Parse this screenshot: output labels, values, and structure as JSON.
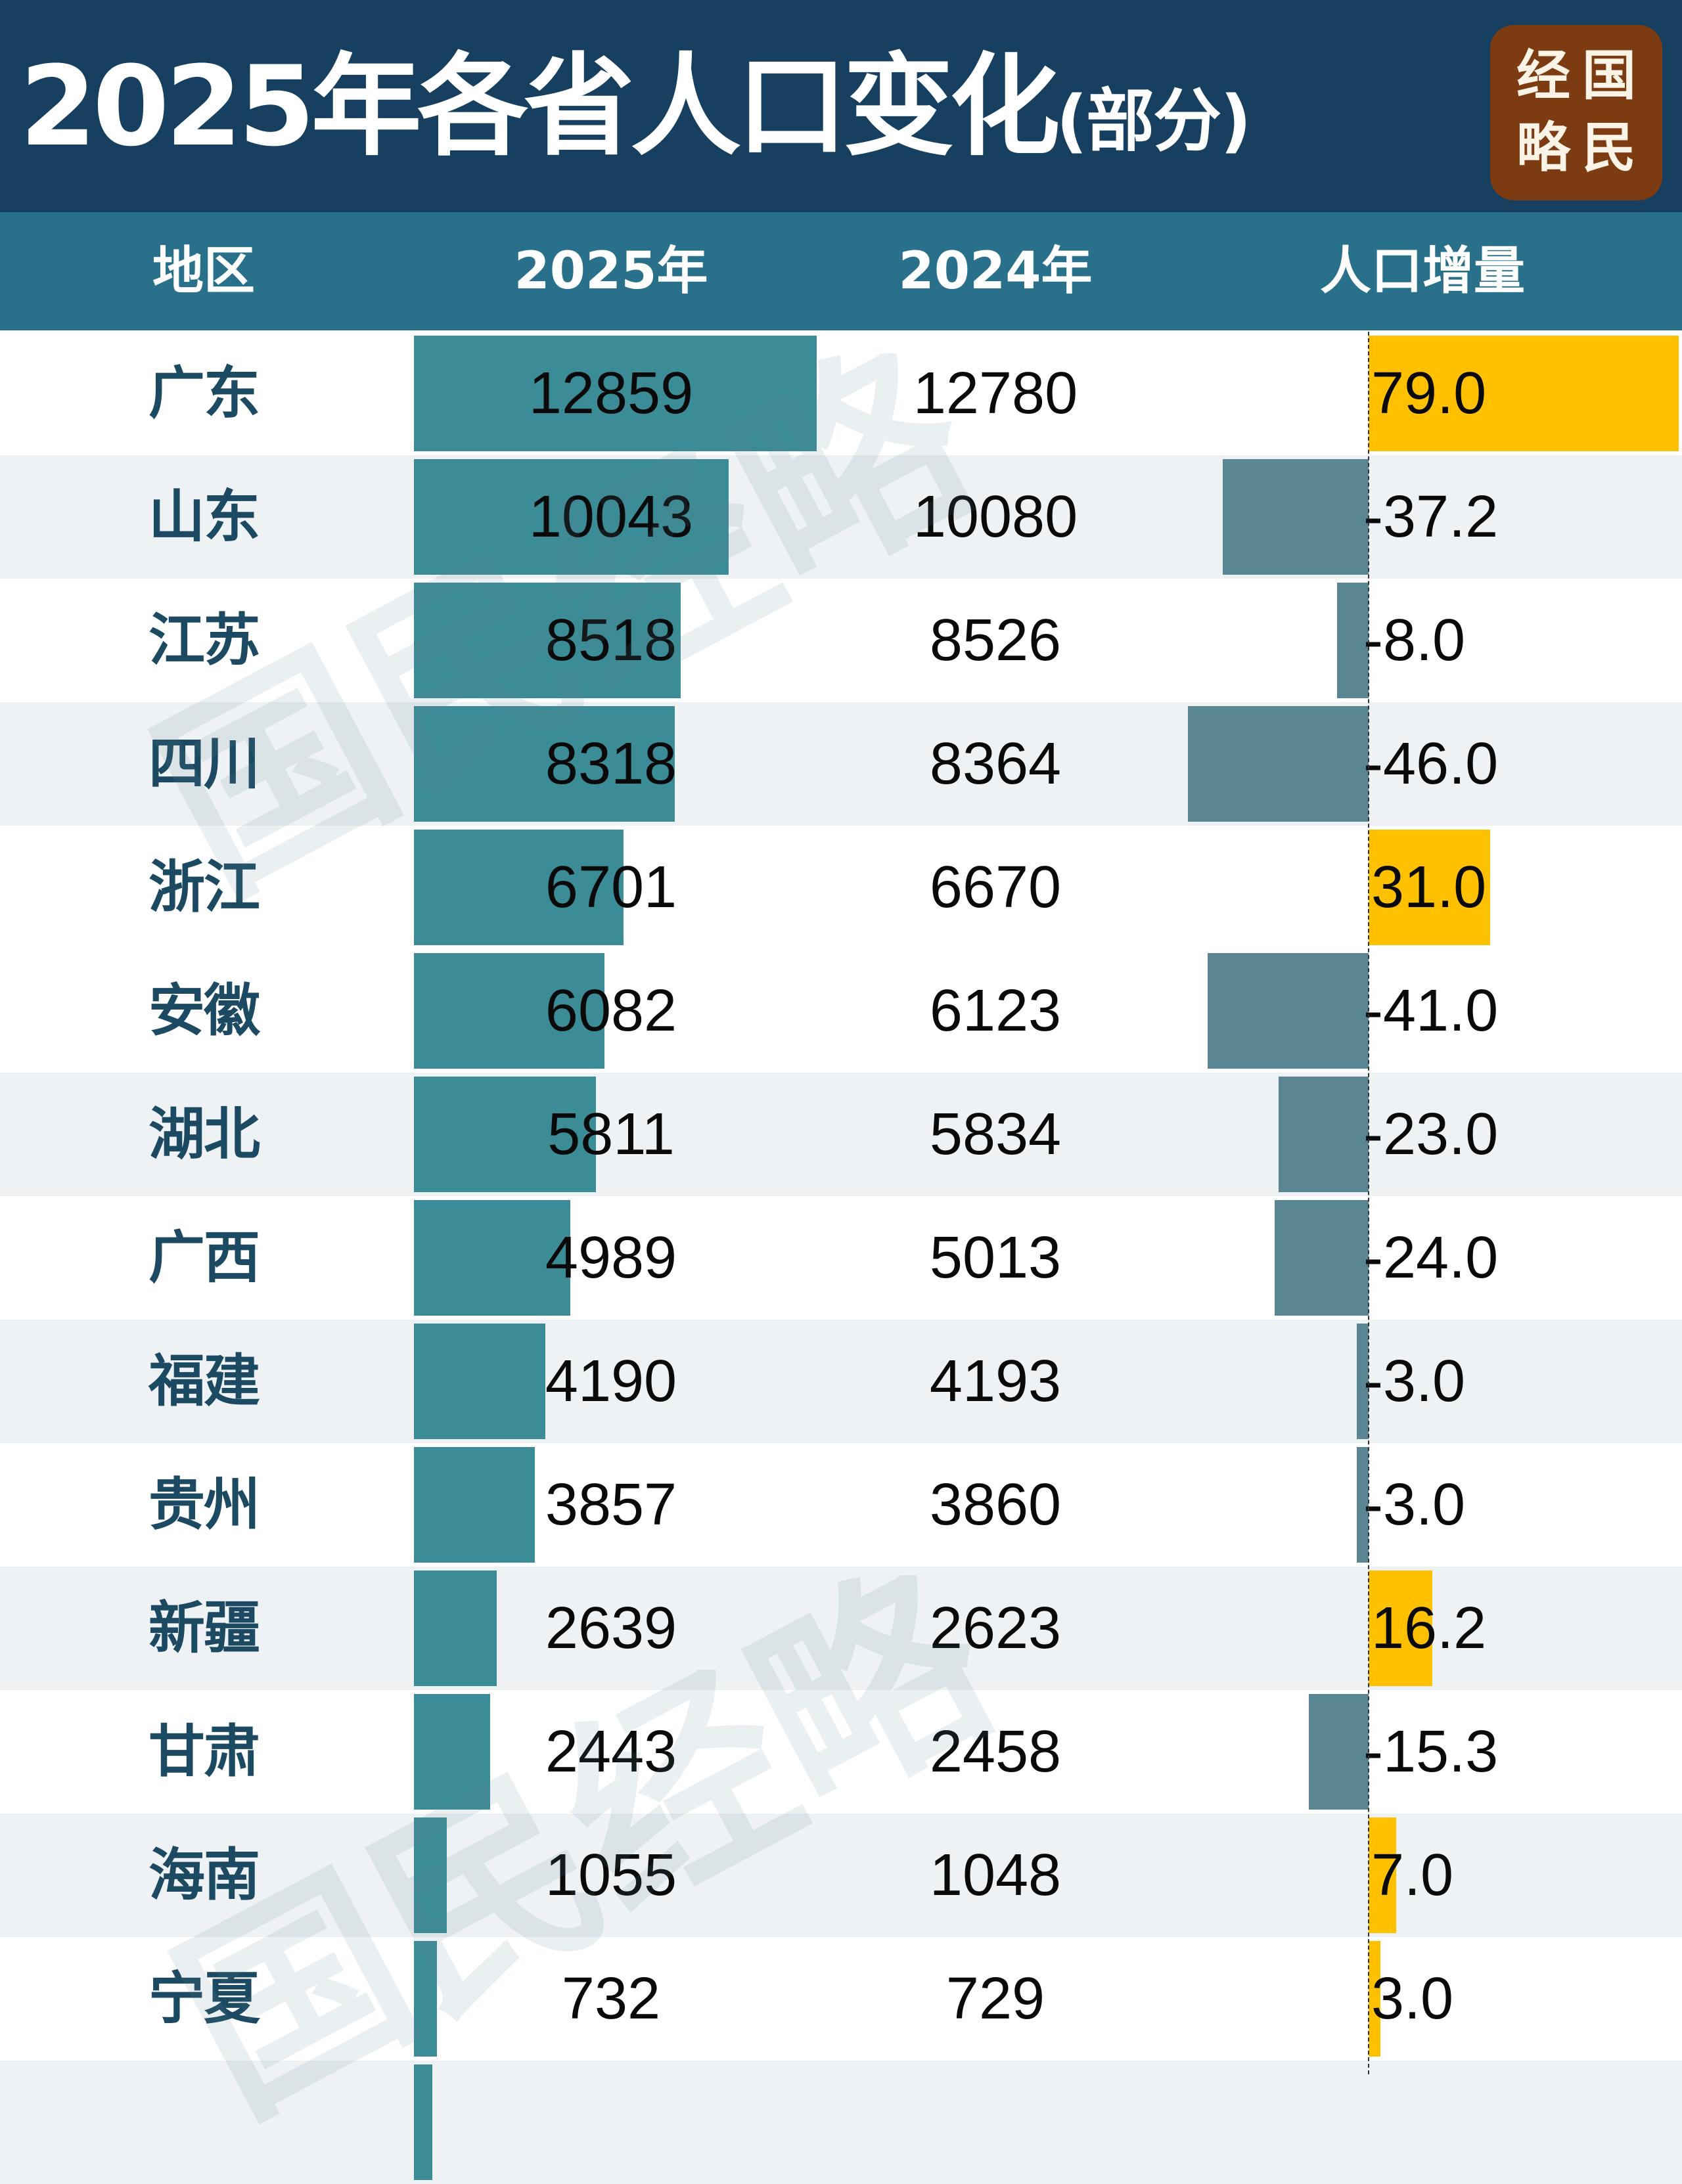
{
  "header": {
    "title_main": "2025年各省人口变化",
    "title_sub": "(部分)",
    "logo": {
      "chars": [
        "经",
        "国",
        "略",
        "民"
      ],
      "text": "国民经略",
      "bg_color": "#7d3b11"
    }
  },
  "table": {
    "columns": [
      "地区",
      "2025年",
      "2024年",
      "人口增量"
    ],
    "rows": [
      {
        "region": "广东",
        "y2025": "12859",
        "y2024": "12780",
        "change": "79.0"
      },
      {
        "region": "山东",
        "y2025": "10043",
        "y2024": "10080",
        "change": "-37.2"
      },
      {
        "region": "江苏",
        "y2025": "8518",
        "y2024": "8526",
        "change": "-8.0"
      },
      {
        "region": "四川",
        "y2025": "8318",
        "y2024": "8364",
        "change": "-46.0"
      },
      {
        "region": "浙江",
        "y2025": "6701",
        "y2024": "6670",
        "change": "31.0"
      },
      {
        "region": "安徽",
        "y2025": "6082",
        "y2024": "6123",
        "change": "-41.0"
      },
      {
        "region": "湖北",
        "y2025": "5811",
        "y2024": "5834",
        "change": "-23.0"
      },
      {
        "region": "广西",
        "y2025": "4989",
        "y2024": "5013",
        "change": "-24.0"
      },
      {
        "region": "福建",
        "y2025": "4190",
        "y2024": "4193",
        "change": "-3.0"
      },
      {
        "region": "贵州",
        "y2025": "3857",
        "y2024": "3860",
        "change": "-3.0"
      },
      {
        "region": "新疆",
        "y2025": "2639",
        "y2024": "2623",
        "change": "16.2"
      },
      {
        "region": "甘肃",
        "y2025": "2443",
        "y2024": "2458",
        "change": "-15.3"
      },
      {
        "region": "海南",
        "y2025": "1055",
        "y2024": "1048",
        "change": "7.0"
      },
      {
        "region": "宁夏",
        "y2025": "732",
        "y2024": "729",
        "change": "3.0"
      }
    ]
  },
  "colors": {
    "title_band": "#163f60",
    "header_band": "#29718b",
    "bar_2025": "#3b8c96",
    "change_negative": "#5a8693",
    "change_positive": "#ffc000",
    "region_text": "#1d4a63",
    "row_alt": "#eef2f4"
  },
  "watermark": "国民经略",
  "chart_data": {
    "type": "table",
    "title": "2025年各省人口变化(部分)",
    "columns": [
      "地区",
      "2025年",
      "2024年",
      "人口增量"
    ],
    "categories": [
      "广东",
      "山东",
      "江苏",
      "四川",
      "浙江",
      "安徽",
      "湖北",
      "广西",
      "福建",
      "贵州",
      "新疆",
      "甘肃",
      "海南",
      "宁夏"
    ],
    "series": [
      {
        "name": "2025年",
        "values": [
          12859,
          10043,
          8518,
          8318,
          6701,
          6082,
          5811,
          4989,
          4190,
          3857,
          2639,
          2443,
          1055,
          732
        ],
        "style": "in-cell bar"
      },
      {
        "name": "2024年",
        "values": [
          12780,
          10080,
          8526,
          8364,
          6670,
          6123,
          5834,
          5013,
          4193,
          3860,
          2623,
          2458,
          1048,
          729
        ]
      },
      {
        "name": "人口增量",
        "values": [
          79.0,
          -37.2,
          -8.0,
          -46.0,
          31.0,
          -41.0,
          -23.0,
          -24.0,
          -3.0,
          -3.0,
          16.2,
          -15.3,
          7.0,
          3.0
        ],
        "style": "diverging bar, positive yellow, negative slate"
      }
    ]
  }
}
